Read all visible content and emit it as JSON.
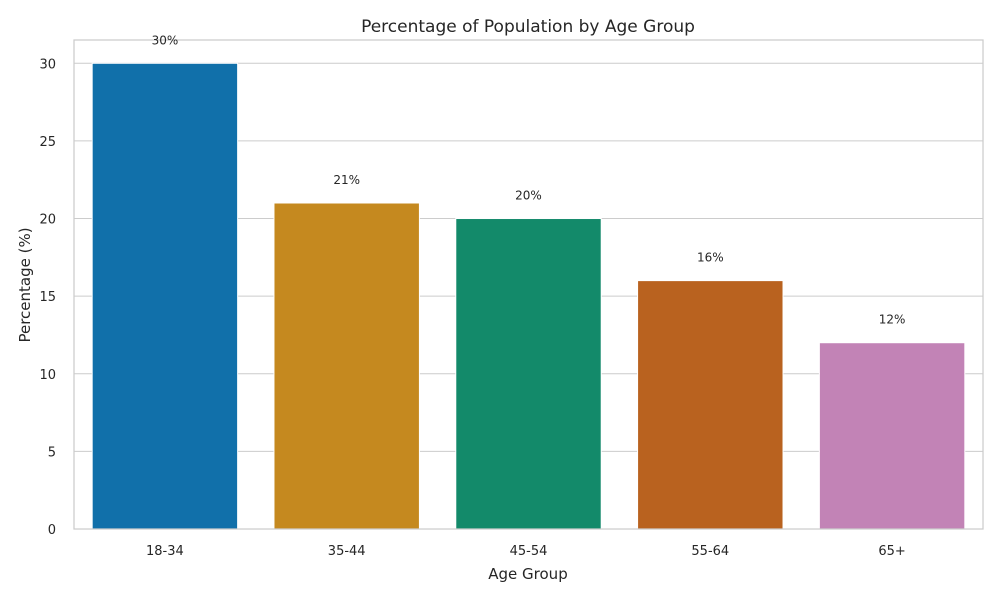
{
  "chart_data": {
    "type": "bar",
    "title": "Percentage of Population by Age Group",
    "xlabel": "Age Group",
    "ylabel": "Percentage (%)",
    "categories": [
      "18-34",
      "35-44",
      "45-54",
      "55-64",
      "65+"
    ],
    "values": [
      30,
      21,
      20,
      16,
      12
    ],
    "data_labels": [
      "30%",
      "21%",
      "20%",
      "16%",
      "12%"
    ],
    "colors": [
      "#1170aa",
      "#c5891f",
      "#138a6a",
      "#b9621f",
      "#c283b6"
    ],
    "ylim": [
      0,
      31.5
    ],
    "yticks": [
      0,
      5,
      10,
      15,
      20,
      25,
      30
    ],
    "grid": "horizontal",
    "legend": "none"
  }
}
